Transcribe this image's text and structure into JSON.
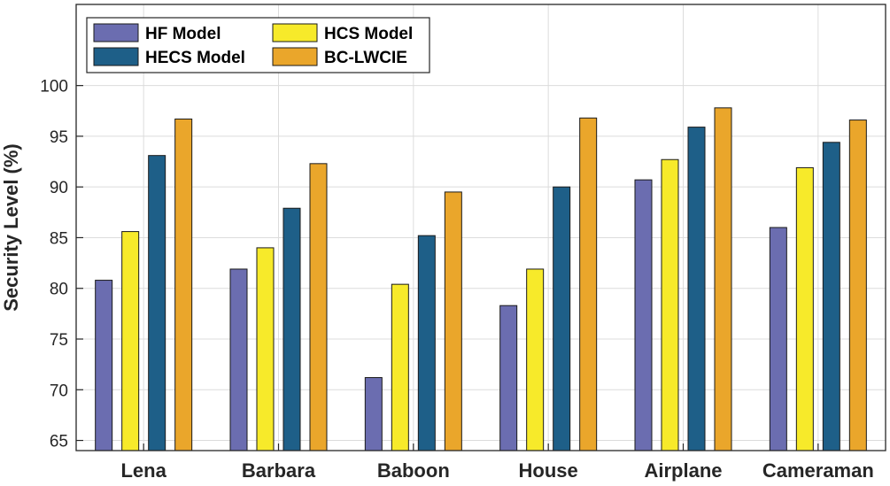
{
  "chart_data": {
    "type": "bar",
    "categories": [
      "Lena",
      "Barbara",
      "Baboon",
      "House",
      "Airplane",
      "Cameraman"
    ],
    "series": [
      {
        "name": "HF Model",
        "color": "#6b6db0",
        "values": [
          80.8,
          81.9,
          71.2,
          78.3,
          90.7,
          86.0
        ]
      },
      {
        "name": "HCS Model",
        "color": "#f7ea2a",
        "values": [
          85.6,
          84.0,
          80.4,
          81.9,
          92.7,
          91.9
        ]
      },
      {
        "name": "HECS Model",
        "color": "#1e5f88",
        "values": [
          93.1,
          87.9,
          85.2,
          90.0,
          95.9,
          94.4
        ]
      },
      {
        "name": "BC-LWCIE",
        "color": "#eaa62b",
        "values": [
          96.7,
          92.3,
          89.5,
          96.8,
          97.8,
          96.6
        ]
      }
    ],
    "title": "",
    "xlabel": "",
    "ylabel": "Security Level (%)",
    "ylim": [
      64,
      108
    ],
    "yticks": [
      65,
      70,
      75,
      80,
      85,
      90,
      95,
      100
    ],
    "grid": true,
    "legend_position": "top-left"
  }
}
